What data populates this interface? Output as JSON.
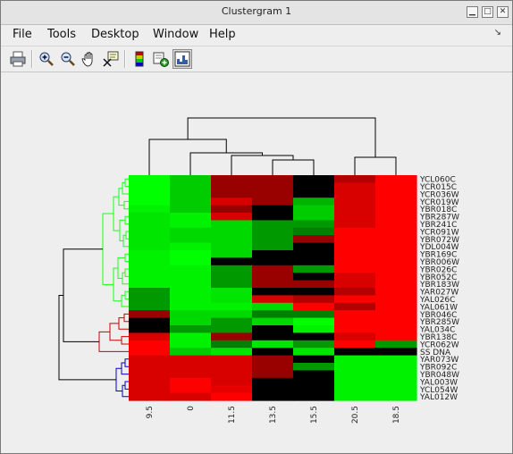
{
  "window": {
    "title": "Clustergram 1",
    "minimize_icon": "minimize-icon",
    "maximize_icon": "maximize-icon",
    "close_icon": "close-icon"
  },
  "menu": {
    "file": "File",
    "tools": "Tools",
    "desktop": "Desktop",
    "window": "Window",
    "help": "Help",
    "dock_icon": "dock-arrow-icon"
  },
  "toolbar": [
    {
      "name": "print-icon"
    },
    {
      "name": "zoom-in-icon"
    },
    {
      "name": "zoom-out-icon"
    },
    {
      "name": "pan-hand-icon"
    },
    {
      "name": "data-cursor-icon"
    },
    {
      "name": "colorbar-icon"
    },
    {
      "name": "insert-dendrogram-icon"
    },
    {
      "name": "clustergram-view-icon"
    }
  ],
  "colors": {
    "dendro_green": "#1aff1a",
    "dendro_red": "#cc0000",
    "dendro_blue": "#0000cc",
    "dendro_black": "#000000"
  },
  "chart_data": {
    "type": "heatmap",
    "column_labels": [
      "9.5",
      "0",
      "11.5",
      "13.5",
      "15.5",
      "20.5",
      "18.5"
    ],
    "row_labels": [
      "YCL060C",
      "YCR015C",
      "YCR036W",
      "YCR019W",
      "YBR018C",
      "YBR287W",
      "YBR241C",
      "YCR091W",
      "YBR072W",
      "YDL004W",
      "YBR169C",
      "YBR006W",
      "YBR026C",
      "YBR052C",
      "YBR183W",
      "YAR027W",
      "YAL026C",
      "YAL061W",
      "YBR046C",
      "YBR285W",
      "YAL034C",
      "YBR138C",
      "YCR062W",
      "SS DNA",
      "YAR073W",
      "YBR092C",
      "YBR048W",
      "YAL003W",
      "YCL054W",
      "YAL012W"
    ],
    "values": [
      [
        1.0,
        0.8,
        -0.6,
        -0.6,
        0.0,
        -0.7,
        -1.0
      ],
      [
        1.0,
        0.8,
        -0.6,
        -0.6,
        0.0,
        -0.85,
        -1.0
      ],
      [
        1.0,
        0.8,
        -0.6,
        -0.6,
        0.0,
        -0.85,
        -1.0
      ],
      [
        1.0,
        0.8,
        -0.85,
        -0.6,
        0.7,
        -0.85,
        -1.0
      ],
      [
        0.95,
        0.8,
        -0.6,
        0.0,
        0.8,
        -0.85,
        -1.0
      ],
      [
        0.9,
        0.95,
        -0.85,
        0.0,
        0.8,
        -0.85,
        -1.0
      ],
      [
        0.9,
        0.95,
        0.85,
        0.6,
        0.6,
        -0.85,
        -1.0
      ],
      [
        0.9,
        0.85,
        0.85,
        0.6,
        0.5,
        -1.0,
        -1.0
      ],
      [
        0.9,
        0.85,
        0.85,
        0.6,
        -0.6,
        -1.0,
        -1.0
      ],
      [
        0.9,
        0.95,
        0.85,
        0.6,
        0.0,
        -1.0,
        -1.0
      ],
      [
        0.95,
        1.0,
        0.85,
        0.0,
        0.0,
        -1.0,
        -1.0
      ],
      [
        0.95,
        1.0,
        0.0,
        0.0,
        0.0,
        -1.0,
        -1.0
      ],
      [
        0.95,
        0.95,
        0.6,
        -0.6,
        0.6,
        -1.0,
        -1.0
      ],
      [
        0.95,
        0.95,
        0.6,
        -0.6,
        0.0,
        -0.85,
        -1.0
      ],
      [
        0.95,
        0.95,
        0.6,
        -0.6,
        -0.6,
        -0.85,
        -1.0
      ],
      [
        0.6,
        0.95,
        0.9,
        0.0,
        0.0,
        -0.7,
        -1.0
      ],
      [
        0.6,
        0.95,
        0.9,
        -0.85,
        -0.7,
        -1.0,
        -1.0
      ],
      [
        0.6,
        0.95,
        0.95,
        0.85,
        -1.0,
        -0.7,
        -1.0
      ],
      [
        -0.6,
        0.85,
        0.85,
        0.5,
        0.5,
        -1.0,
        -1.0
      ],
      [
        0.0,
        0.85,
        0.6,
        0.85,
        1.0,
        -1.0,
        -1.0
      ],
      [
        0.0,
        0.6,
        0.6,
        0.0,
        0.95,
        -1.0,
        -1.0
      ],
      [
        -0.85,
        0.95,
        -0.6,
        0.0,
        0.0,
        -0.85,
        -1.0
      ],
      [
        -1.0,
        0.95,
        0.5,
        0.9,
        0.6,
        -1.0,
        0.6
      ],
      [
        -1.0,
        0.8,
        0.9,
        0.0,
        0.9,
        0.0,
        0.0
      ],
      [
        -0.85,
        -0.85,
        -0.85,
        -0.6,
        0.0,
        0.95,
        0.95
      ],
      [
        -0.85,
        -0.85,
        -0.85,
        -0.6,
        0.6,
        0.95,
        0.95
      ],
      [
        -0.85,
        -0.85,
        -0.85,
        -0.6,
        0.0,
        0.95,
        0.95
      ],
      [
        -0.85,
        -1.0,
        -0.85,
        0.0,
        0.0,
        0.95,
        0.95
      ],
      [
        -0.85,
        -1.0,
        -0.9,
        0.0,
        0.0,
        0.95,
        0.95
      ],
      [
        -0.85,
        -0.85,
        -1.0,
        0.0,
        0.0,
        0.95,
        0.95
      ]
    ],
    "color_scale": "green (positive) - black (zero) - red (negative)"
  }
}
